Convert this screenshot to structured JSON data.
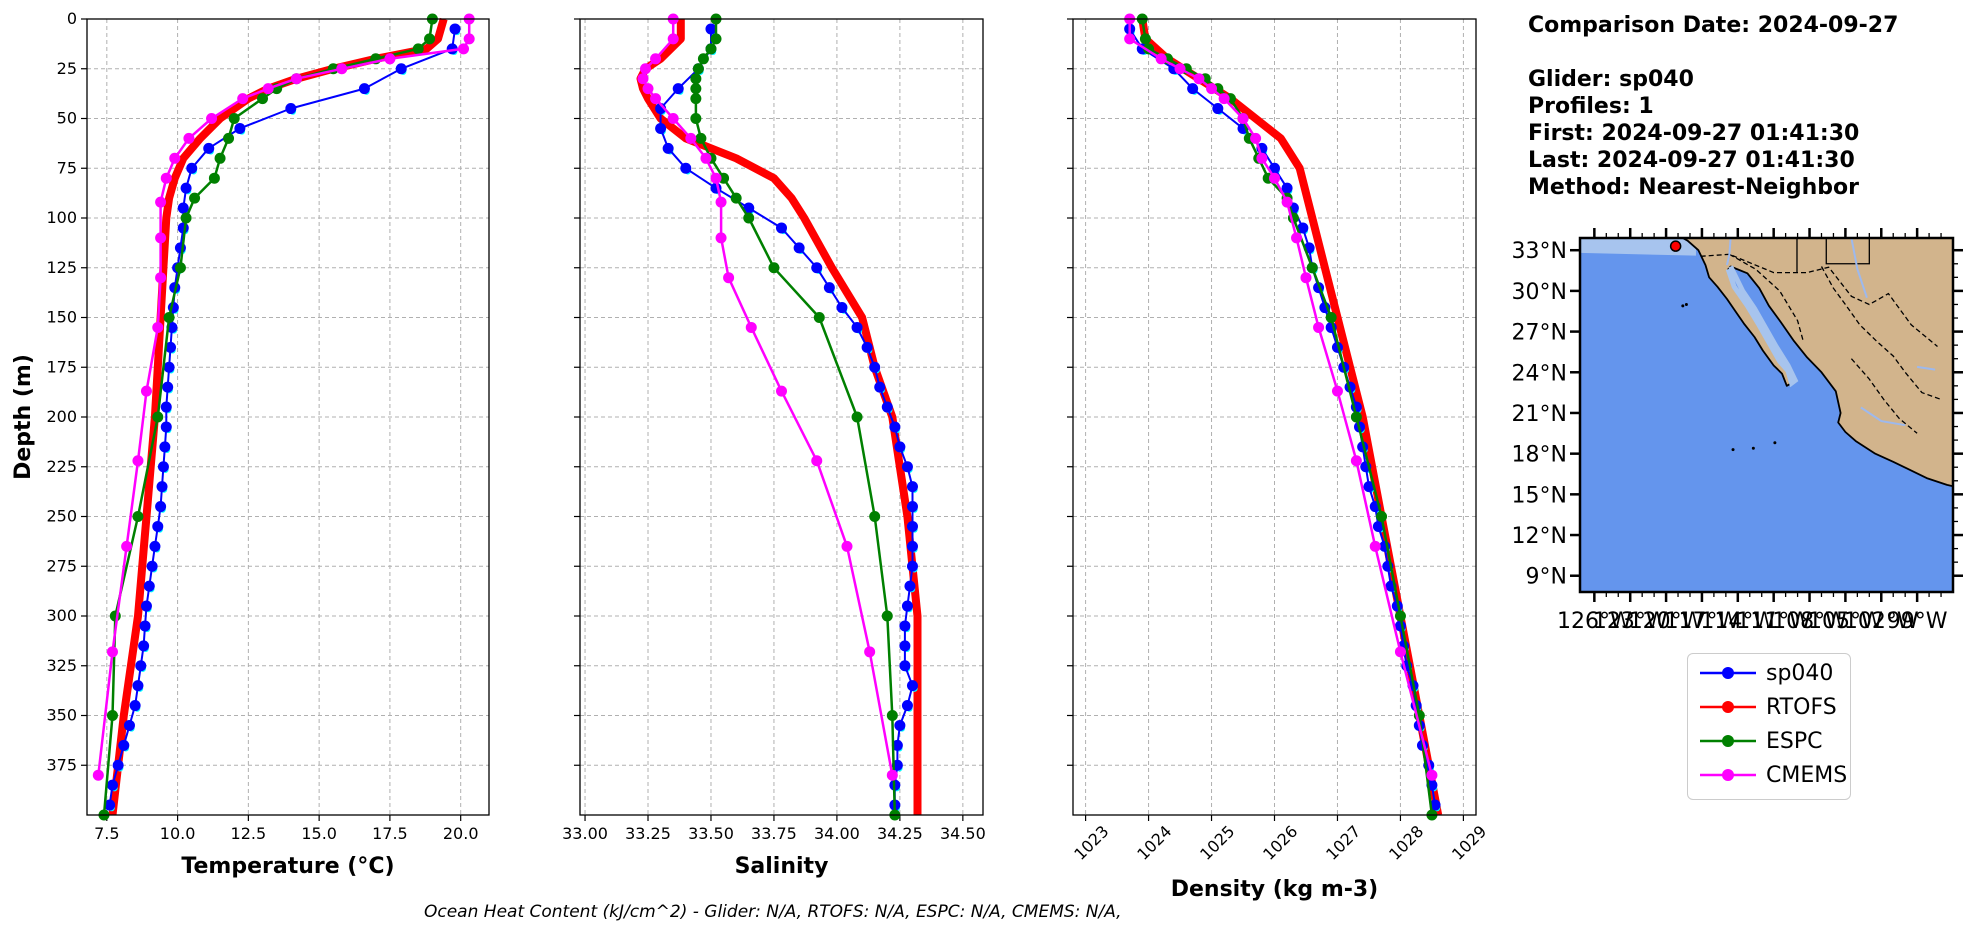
{
  "info": {
    "comparison_date": "Comparison Date: 2024-09-27",
    "glider": "Glider: sp040",
    "profiles": "Profiles: 1",
    "first": "First: 2024-09-27 01:41:30",
    "last": "Last: 2024-09-27 01:41:30",
    "method": "Method: Nearest-Neighbor"
  },
  "footnote": "Ocean Heat Content (kJ/cm^2) - Glider: N/A,  RTOFS: N/A,  ESPC: N/A,  CMEMS: N/A,",
  "legend": [
    {
      "label": "sp040",
      "color": "#0000ff"
    },
    {
      "label": "RTOFS",
      "color": "#ff0000"
    },
    {
      "label": "ESPC",
      "color": "#008000"
    },
    {
      "label": "CMEMS",
      "color": "#ff00ff"
    }
  ],
  "map": {
    "lat_labels": [
      "33°N",
      "30°N",
      "27°N",
      "24°N",
      "21°N",
      "18°N",
      "15°N",
      "12°N",
      "9°N"
    ],
    "lon_labels": [
      "126°W",
      "123°W",
      "120°W",
      "117°W",
      "114°W",
      "111°W",
      "108°W",
      "105°W",
      "102°W",
      "99°W"
    ],
    "ocean_color": "#6495ed",
    "land_color": "#d2b48c",
    "glider_location": {
      "lon": -119.2,
      "lat": 33.3
    }
  },
  "chart_data": [
    {
      "type": "line",
      "xlabel": "Temperature (°C)",
      "ylabel": "Depth (m)",
      "xlim": [
        6.8,
        21.0
      ],
      "ylim": [
        400,
        0
      ],
      "xticks": [
        "7.5",
        "10.0",
        "12.5",
        "15.0",
        "17.5",
        "20.0"
      ],
      "yticks": [
        "0",
        "25",
        "50",
        "75",
        "100",
        "125",
        "150",
        "175",
        "200",
        "225",
        "250",
        "275",
        "300",
        "325",
        "350",
        "375"
      ],
      "series": [
        {
          "name": "sp040",
          "color": "#0000ff",
          "depth": [
            5,
            15,
            25,
            35,
            45,
            55,
            65,
            75,
            85,
            95,
            105,
            115,
            125,
            135,
            145,
            155,
            165,
            175,
            185,
            195,
            205,
            215,
            225,
            235,
            245,
            255,
            265,
            275,
            285,
            295,
            305,
            315,
            325,
            335,
            345,
            355,
            365,
            375,
            385,
            395
          ],
          "values": [
            19.8,
            19.7,
            17.9,
            16.6,
            14.0,
            12.2,
            11.1,
            10.5,
            10.3,
            10.2,
            10.2,
            10.1,
            10.0,
            9.9,
            9.85,
            9.8,
            9.75,
            9.7,
            9.65,
            9.6,
            9.6,
            9.55,
            9.5,
            9.45,
            9.4,
            9.3,
            9.2,
            9.1,
            9.0,
            8.9,
            8.85,
            8.8,
            8.7,
            8.6,
            8.5,
            8.3,
            8.1,
            7.9,
            7.7,
            7.6
          ]
        },
        {
          "name": "RTOFS",
          "color": "#ff0000",
          "depth": [
            0,
            10,
            15,
            20,
            25,
            30,
            35,
            40,
            50,
            60,
            70,
            80,
            90,
            100,
            125,
            150,
            175,
            200,
            250,
            300,
            350,
            400
          ],
          "values": [
            19.4,
            19.2,
            18.8,
            17.0,
            15.5,
            14.2,
            13.2,
            12.5,
            11.5,
            10.8,
            10.2,
            9.9,
            9.7,
            9.6,
            9.5,
            9.4,
            9.3,
            9.2,
            8.9,
            8.6,
            8.1,
            7.7
          ]
        },
        {
          "name": "ESPC",
          "color": "#008000",
          "depth": [
            0,
            10,
            15,
            20,
            25,
            30,
            35,
            40,
            50,
            60,
            70,
            80,
            90,
            100,
            125,
            150,
            200,
            250,
            300,
            350,
            400
          ],
          "values": [
            19.0,
            18.9,
            18.5,
            17.0,
            15.5,
            14.2,
            13.5,
            13.0,
            12.0,
            11.8,
            11.5,
            11.3,
            10.6,
            10.3,
            10.1,
            9.7,
            9.3,
            8.6,
            7.8,
            7.7,
            7.4
          ]
        },
        {
          "name": "CMEMS",
          "color": "#ff00ff",
          "depth": [
            0,
            10,
            15,
            20,
            25,
            30,
            35,
            40,
            50,
            60,
            70,
            80,
            92,
            110,
            130,
            155,
            187,
            222,
            265,
            318,
            380
          ],
          "values": [
            20.3,
            20.3,
            20.1,
            17.5,
            15.8,
            14.2,
            13.2,
            12.3,
            11.2,
            10.4,
            9.9,
            9.6,
            9.4,
            9.4,
            9.4,
            9.3,
            8.9,
            8.6,
            8.2,
            7.7,
            7.2
          ]
        }
      ]
    },
    {
      "type": "line",
      "xlabel": "Salinity",
      "ylabel": "",
      "xlim": [
        32.98,
        34.58
      ],
      "ylim": [
        400,
        0
      ],
      "xticks": [
        "33.00",
        "33.25",
        "33.50",
        "33.75",
        "34.00",
        "34.25",
        "34.50"
      ],
      "series": [
        {
          "name": "sp040",
          "color": "#0000ff",
          "depth": [
            5,
            15,
            25,
            35,
            45,
            55,
            65,
            75,
            85,
            95,
            105,
            115,
            125,
            135,
            145,
            155,
            165,
            175,
            185,
            195,
            205,
            215,
            225,
            235,
            245,
            255,
            265,
            275,
            285,
            295,
            305,
            315,
            325,
            335,
            345,
            355,
            365,
            375,
            385,
            395
          ],
          "values": [
            33.5,
            33.5,
            33.45,
            33.37,
            33.3,
            33.3,
            33.33,
            33.4,
            33.52,
            33.65,
            33.78,
            33.85,
            33.92,
            33.97,
            34.02,
            34.08,
            34.12,
            34.15,
            34.17,
            34.2,
            34.23,
            34.25,
            34.28,
            34.3,
            34.3,
            34.3,
            34.3,
            34.3,
            34.29,
            34.28,
            34.27,
            34.27,
            34.27,
            34.3,
            34.28,
            34.25,
            34.24,
            34.24,
            34.23,
            34.23
          ]
        },
        {
          "name": "RTOFS",
          "color": "#ff0000",
          "depth": [
            0,
            10,
            20,
            25,
            30,
            35,
            40,
            50,
            60,
            70,
            80,
            90,
            100,
            125,
            150,
            175,
            200,
            250,
            300,
            350,
            400
          ],
          "values": [
            33.38,
            33.38,
            33.3,
            33.24,
            33.22,
            33.23,
            33.25,
            33.3,
            33.4,
            33.6,
            33.75,
            33.82,
            33.87,
            33.98,
            34.1,
            34.15,
            34.22,
            34.28,
            34.32,
            34.32,
            34.32
          ]
        },
        {
          "name": "ESPC",
          "color": "#008000",
          "depth": [
            0,
            10,
            15,
            20,
            25,
            30,
            35,
            40,
            50,
            60,
            70,
            80,
            90,
            100,
            125,
            150,
            200,
            250,
            300,
            350,
            400
          ],
          "values": [
            33.52,
            33.52,
            33.5,
            33.47,
            33.45,
            33.44,
            33.44,
            33.44,
            33.44,
            33.46,
            33.5,
            33.55,
            33.6,
            33.65,
            33.75,
            33.93,
            34.08,
            34.15,
            34.2,
            34.22,
            34.23
          ]
        },
        {
          "name": "CMEMS",
          "color": "#ff00ff",
          "depth": [
            0,
            10,
            20,
            25,
            30,
            35,
            40,
            50,
            60,
            70,
            80,
            92,
            110,
            130,
            155,
            187,
            222,
            265,
            318,
            380
          ],
          "values": [
            33.35,
            33.35,
            33.28,
            33.24,
            33.23,
            33.25,
            33.28,
            33.35,
            33.42,
            33.48,
            33.52,
            33.54,
            33.54,
            33.57,
            33.66,
            33.78,
            33.92,
            34.04,
            34.13,
            34.22
          ]
        }
      ]
    },
    {
      "type": "line",
      "xlabel": "Density (kg m-3)",
      "ylabel": "",
      "xlim": [
        1022.8,
        1029.2
      ],
      "ylim": [
        400,
        0
      ],
      "xticks": [
        "1023",
        "1024",
        "1025",
        "1026",
        "1027",
        "1028",
        "1029"
      ],
      "series": [
        {
          "name": "sp040",
          "color": "#0000ff",
          "depth": [
            5,
            15,
            25,
            35,
            45,
            55,
            65,
            75,
            85,
            95,
            105,
            115,
            125,
            135,
            145,
            155,
            165,
            175,
            185,
            195,
            205,
            215,
            225,
            235,
            245,
            255,
            265,
            275,
            285,
            295,
            305,
            315,
            325,
            335,
            345,
            355,
            365,
            375,
            385,
            395
          ],
          "values": [
            1023.7,
            1023.9,
            1024.4,
            1024.7,
            1025.1,
            1025.5,
            1025.8,
            1026.0,
            1026.2,
            1026.3,
            1026.45,
            1026.55,
            1026.6,
            1026.7,
            1026.8,
            1026.9,
            1027.0,
            1027.1,
            1027.2,
            1027.3,
            1027.35,
            1027.4,
            1027.45,
            1027.5,
            1027.6,
            1027.65,
            1027.75,
            1027.8,
            1027.85,
            1027.95,
            1028.0,
            1028.05,
            1028.1,
            1028.2,
            1028.25,
            1028.3,
            1028.35,
            1028.45,
            1028.5,
            1028.55
          ]
        },
        {
          "name": "RTOFS",
          "color": "#ff0000",
          "depth": [
            0,
            10,
            20,
            30,
            40,
            50,
            60,
            75,
            100,
            125,
            150,
            175,
            200,
            250,
            300,
            350,
            400
          ],
          "values": [
            1023.9,
            1023.95,
            1024.3,
            1024.8,
            1025.3,
            1025.7,
            1026.1,
            1026.4,
            1026.6,
            1026.8,
            1027.0,
            1027.2,
            1027.4,
            1027.7,
            1028.0,
            1028.3,
            1028.6
          ]
        },
        {
          "name": "ESPC",
          "color": "#008000",
          "depth": [
            0,
            10,
            15,
            20,
            25,
            30,
            35,
            40,
            50,
            60,
            70,
            80,
            90,
            100,
            125,
            150,
            200,
            250,
            300,
            350,
            400
          ],
          "values": [
            1023.9,
            1023.95,
            1024.0,
            1024.3,
            1024.6,
            1024.9,
            1025.1,
            1025.3,
            1025.5,
            1025.6,
            1025.75,
            1025.9,
            1026.2,
            1026.3,
            1026.6,
            1026.9,
            1027.3,
            1027.7,
            1028.0,
            1028.3,
            1028.5
          ]
        },
        {
          "name": "CMEMS",
          "color": "#ff00ff",
          "depth": [
            0,
            10,
            20,
            25,
            30,
            35,
            40,
            50,
            60,
            70,
            80,
            92,
            110,
            130,
            155,
            187,
            222,
            265,
            318,
            380
          ],
          "values": [
            1023.7,
            1023.7,
            1024.2,
            1024.5,
            1024.8,
            1025.0,
            1025.2,
            1025.5,
            1025.7,
            1025.8,
            1026.0,
            1026.2,
            1026.35,
            1026.5,
            1026.7,
            1027.0,
            1027.3,
            1027.6,
            1028.0,
            1028.5
          ]
        }
      ]
    }
  ]
}
